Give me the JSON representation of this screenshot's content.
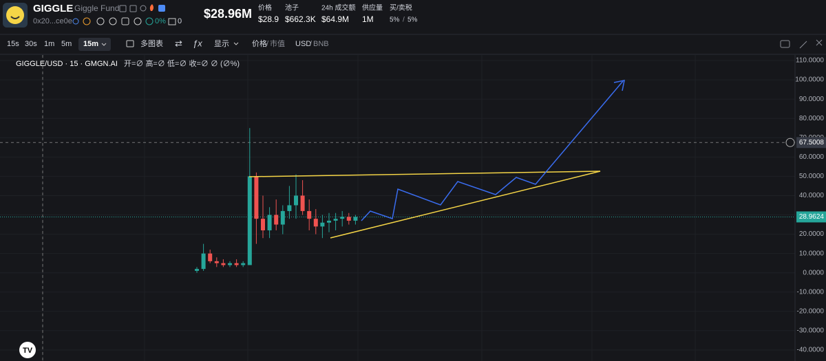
{
  "header": {
    "symbol": "GIGGLE",
    "name": "Giggle Fund",
    "address": "0x20...ce0e",
    "pct": "0%",
    "count": "0",
    "mcap": "$28.96M",
    "stats": [
      {
        "label": "价格",
        "value": "$28.9"
      },
      {
        "label": "池子",
        "value": "$662.3K"
      },
      {
        "label": "24h 成交额",
        "value": "$64.9M"
      },
      {
        "label": "供应量",
        "value": "1M"
      }
    ],
    "tax": {
      "label": "买/卖税",
      "buy": "5%",
      "sep": "/",
      "sell": "5%"
    }
  },
  "toolbar": {
    "intervals": [
      "15s",
      "30s",
      "1m",
      "5m",
      "15m"
    ],
    "multi_chart": "多图表",
    "display": "显示",
    "price": "价格",
    "slash": "/",
    "mcap": "市值",
    "usd": "USD",
    "bnb": "BNB"
  },
  "chart_data": {
    "type": "candlestick",
    "title": "GIGGLE/USD · 15 · GMGN.AI",
    "ohlc_legend": "开=∅ 高=∅ 低=∅ 收=∅ ∅ (∅%)",
    "open": [
      1,
      2,
      10,
      6,
      5,
      4,
      5,
      4,
      4,
      50,
      28,
      22,
      30,
      25,
      32,
      35,
      40,
      32,
      28,
      24,
      26,
      27,
      28,
      29,
      27
    ],
    "high": [
      3,
      15,
      12,
      8,
      7,
      6,
      7,
      6,
      75,
      52,
      40,
      34,
      38,
      35,
      45,
      51,
      48,
      38,
      33,
      30,
      31,
      31,
      32,
      31,
      30
    ],
    "low": [
      0,
      1,
      5,
      3,
      3,
      3,
      3,
      3,
      4,
      15,
      18,
      18,
      22,
      20,
      28,
      28,
      30,
      22,
      20,
      18,
      21,
      22,
      24,
      25,
      25
    ],
    "close": [
      2,
      10,
      6,
      5,
      4,
      5,
      4,
      5,
      50,
      28,
      22,
      30,
      25,
      32,
      35,
      40,
      32,
      28,
      24,
      26,
      27,
      28,
      29,
      27,
      29
    ],
    "up_color": "#26a69a",
    "down_color": "#ef5350",
    "ylim": [
      -40,
      110
    ],
    "yticks": [
      {
        "value": 110,
        "label": "110.0000"
      },
      {
        "value": 100,
        "label": "100.0000"
      },
      {
        "value": 90,
        "label": "90.0000"
      },
      {
        "value": 80,
        "label": "80.0000"
      },
      {
        "value": 70,
        "label": "70.0000"
      },
      {
        "value": 60,
        "label": "60.0000"
      },
      {
        "value": 50,
        "label": "50.0000"
      },
      {
        "value": 40,
        "label": "40.0000"
      },
      {
        "value": 30,
        "label": "30.0000"
      },
      {
        "value": 20,
        "label": "20.0000"
      },
      {
        "value": 10,
        "label": "10.0000"
      },
      {
        "value": 0,
        "label": "0.0000"
      },
      {
        "value": -10,
        "label": "-10.0000"
      },
      {
        "value": -20,
        "label": "-20.0000"
      },
      {
        "value": -30,
        "label": "-30.0000"
      },
      {
        "value": -40,
        "label": "-40.0000"
      }
    ],
    "crosshair": {
      "value": 67.5008,
      "label": "67.5008"
    },
    "last_price": {
      "value": 28.9624,
      "label": "28.9624"
    },
    "grid": true
  }
}
